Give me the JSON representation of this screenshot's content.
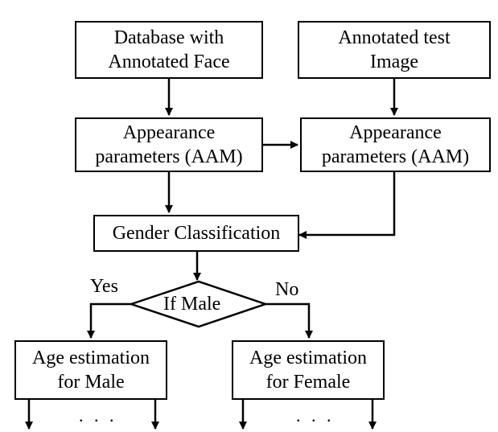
{
  "diagram": {
    "database": {
      "line1": "Database with",
      "line2": "Annotated Face"
    },
    "test_image": {
      "line1": "Annotated test",
      "line2": "Image"
    },
    "aam_left": {
      "line1": "Appearance",
      "line2": "parameters (AAM)"
    },
    "aam_right": {
      "line1": "Appearance",
      "line2": "parameters (AAM)"
    },
    "gender": {
      "label": "Gender Classification"
    },
    "decision": {
      "label": "If Male",
      "yes": "Yes",
      "no": "No"
    },
    "age_male": {
      "line1": "Age estimation",
      "line2": "for Male"
    },
    "age_female": {
      "line1": "Age estimation",
      "line2": "for Female"
    },
    "ellipsis": ". . ."
  }
}
